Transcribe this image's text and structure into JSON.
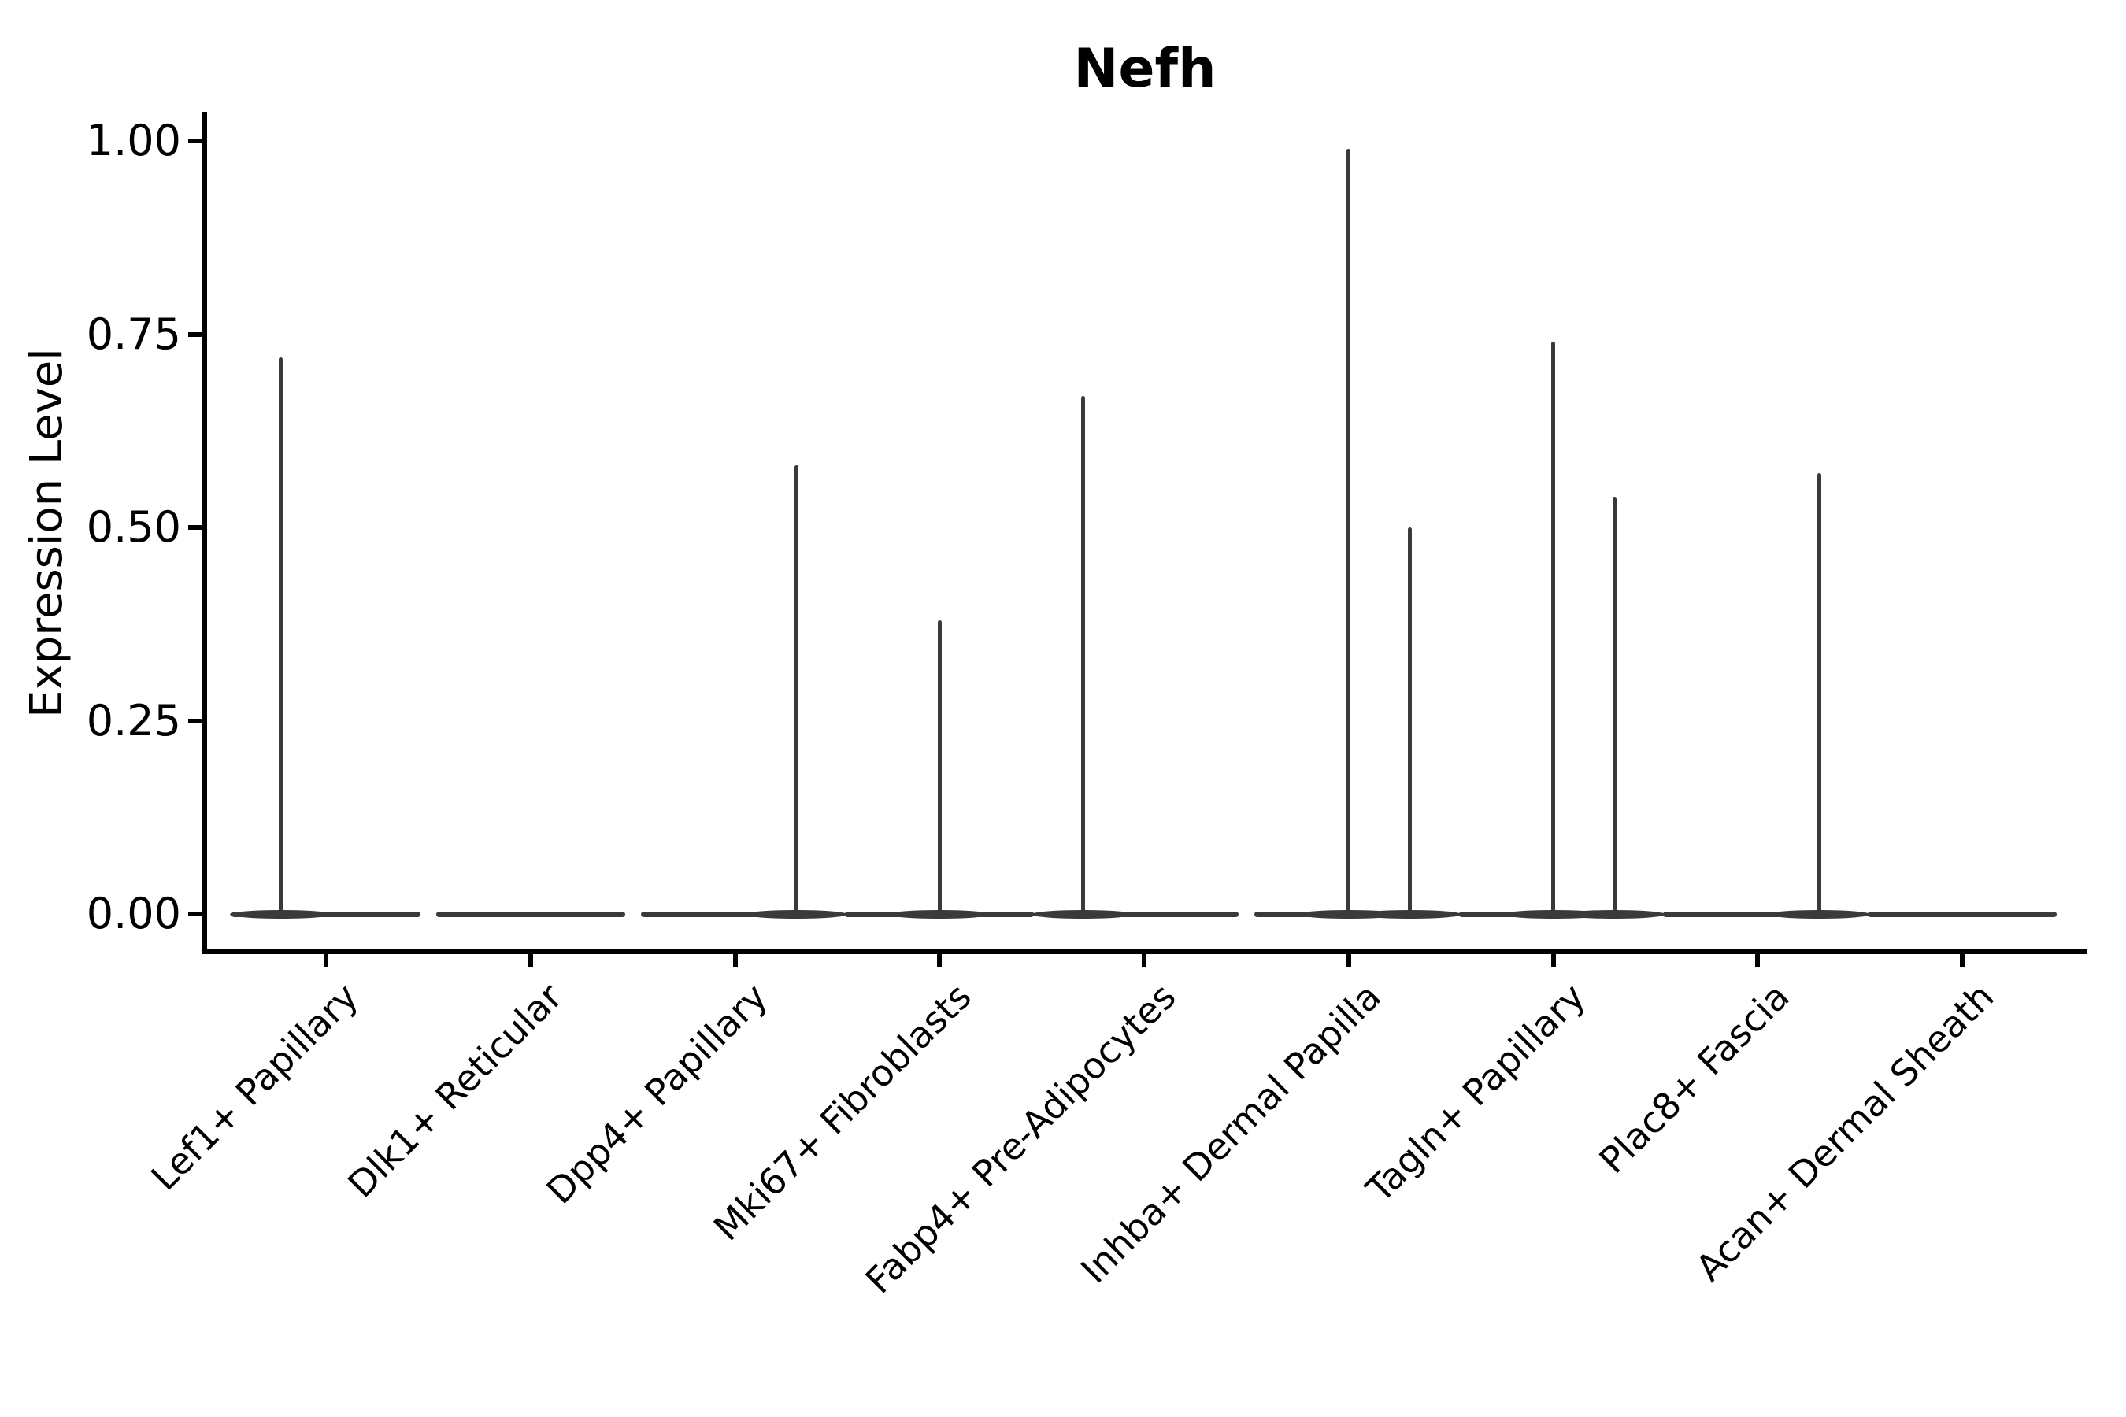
{
  "title": "Nefh",
  "axes": {
    "y_label": "Expression Level",
    "y_tick_labels": [
      "0.00",
      "0.25",
      "0.50",
      "0.75",
      "1.00"
    ]
  },
  "chart_data": {
    "type": "violin",
    "title": "Nefh",
    "xlabel": "",
    "ylabel": "Expression Level",
    "ylim": [
      0,
      1.0
    ],
    "y_ticks": [
      0,
      0.25,
      0.5,
      0.75,
      1.0
    ],
    "y_tick_labels": [
      "0.00",
      "0.25",
      "0.50",
      "0.75",
      "1.00"
    ],
    "grid": false,
    "legend": "none",
    "violin_color": "#3a3a3a",
    "axis_color": "#000000",
    "categories": [
      "Lef1+ Papillary",
      "Dlk1+ Reticular",
      "Dpp4+ Papillary",
      "Mki67+ Fibroblasts",
      "Fabp4+ Pre-Adipocytes",
      "Inhba+ Dermal Papilla",
      "Tagln+ Papillary",
      "Plac8+ Fascia",
      "Acan+ Dermal Sheath"
    ],
    "violins": [
      {
        "category": "Lef1+ Papillary",
        "bulk_at_zero": true,
        "spikes": [
          {
            "value": 0.72,
            "offset_frac": -0.22
          }
        ]
      },
      {
        "category": "Dlk1+ Reticular",
        "bulk_at_zero": true,
        "spikes": []
      },
      {
        "category": "Dpp4+ Papillary",
        "bulk_at_zero": true,
        "spikes": [
          {
            "value": 0.58,
            "offset_frac": 0.3
          }
        ]
      },
      {
        "category": "Mki67+ Fibroblasts",
        "bulk_at_zero": true,
        "spikes": [
          {
            "value": 0.38,
            "offset_frac": 0.0
          }
        ]
      },
      {
        "category": "Fabp4+ Pre-Adipocytes",
        "bulk_at_zero": true,
        "spikes": [
          {
            "value": 0.67,
            "offset_frac": -0.3
          }
        ]
      },
      {
        "category": "Inhba+ Dermal Papilla",
        "bulk_at_zero": true,
        "spikes": [
          {
            "value": 0.99,
            "offset_frac": 0.0
          },
          {
            "value": 0.5,
            "offset_frac": 0.3
          }
        ]
      },
      {
        "category": "Tagln+ Papillary",
        "bulk_at_zero": true,
        "spikes": [
          {
            "value": 0.74,
            "offset_frac": 0.0
          },
          {
            "value": 0.54,
            "offset_frac": 0.3
          }
        ]
      },
      {
        "category": "Plac8+ Fascia",
        "bulk_at_zero": true,
        "spikes": [
          {
            "value": 0.57,
            "offset_frac": 0.3
          }
        ]
      },
      {
        "category": "Acan+ Dermal Sheath",
        "bulk_at_zero": true,
        "spikes": []
      }
    ]
  }
}
